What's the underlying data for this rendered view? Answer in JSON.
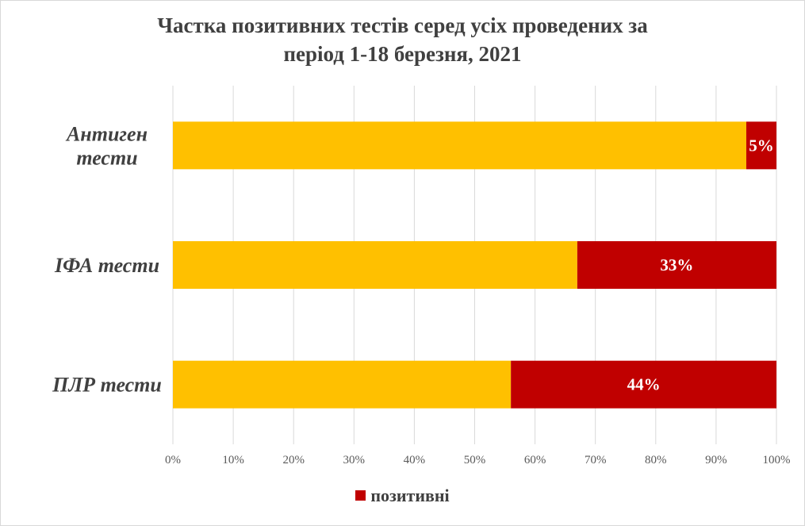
{
  "chart_data": {
    "type": "bar",
    "orientation": "horizontal",
    "stacked": "percent",
    "title": [
      "Частка позитивних тестів серед усіх проведених за",
      "період 1-18 березня, 2021"
    ],
    "categories": [
      "Антиген тести",
      "ІФА тести",
      "ПЛР тести"
    ],
    "category_lines": [
      [
        "Антиген",
        "тести"
      ],
      [
        "ІФА тести"
      ],
      [
        "ПЛР тести"
      ]
    ],
    "series": [
      {
        "name": "",
        "color": "#FFC000",
        "values": [
          95,
          67,
          56
        ]
      },
      {
        "name": "позитивні",
        "color": "#C00000",
        "values": [
          5,
          33,
          44
        ],
        "labels": [
          "5%",
          "33%",
          "44%"
        ]
      }
    ],
    "xlim": [
      0,
      100
    ],
    "xticks": [
      "0%",
      "10%",
      "20%",
      "30%",
      "40%",
      "50%",
      "60%",
      "70%",
      "80%",
      "90%",
      "100%"
    ],
    "grid": true,
    "legend": {
      "position": "bottom",
      "label": "позитивні",
      "color": "#C00000"
    }
  }
}
